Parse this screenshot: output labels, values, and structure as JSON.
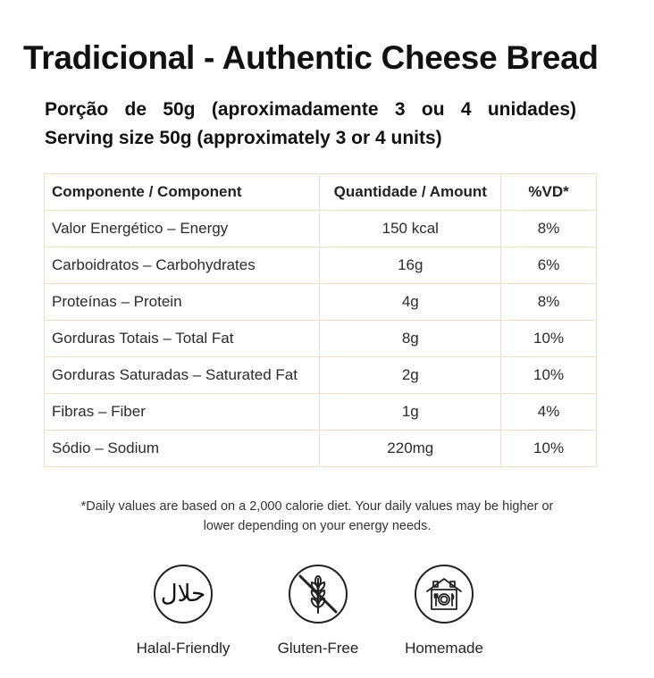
{
  "title": "Tradicional - Authentic Cheese Bread",
  "serving": {
    "pt": "Porção de 50g (aproximadamente 3 ou 4 unidades)",
    "en": "Serving size 50g (approximately 3 or 4 units)"
  },
  "table": {
    "headers": [
      "Componente / Component",
      "Quantidade / Amount",
      "%VD*"
    ],
    "rows": [
      {
        "component": "Valor Energético – Energy",
        "amount": "150 kcal",
        "dv": "8%"
      },
      {
        "component": "Carboidratos – Carbohydrates",
        "amount": "16g",
        "dv": "6%"
      },
      {
        "component": "Proteínas – Protein",
        "amount": "4g",
        "dv": "8%"
      },
      {
        "component": "Gorduras Totais – Total Fat",
        "amount": "8g",
        "dv": "10%"
      },
      {
        "component": "Gorduras Saturadas – Saturated Fat",
        "amount": "2g",
        "dv": "10%"
      },
      {
        "component": "Fibras – Fiber",
        "amount": "1g",
        "dv": "4%"
      },
      {
        "component": "Sódio – Sodium",
        "amount": "220mg",
        "dv": "10%"
      }
    ],
    "border_color": "#f3dfc8"
  },
  "footnote": {
    "line1": "*Daily values are based on a 2,000 calorie diet. Your daily values may be higher or",
    "line2": "lower depending on your energy needs."
  },
  "badges": [
    {
      "label": "Halal-Friendly",
      "icon": "halal-icon",
      "glyph": "حلال"
    },
    {
      "label": "Gluten-Free",
      "icon": "gluten-free-icon"
    },
    {
      "label": "Homemade",
      "icon": "homemade-icon"
    }
  ]
}
